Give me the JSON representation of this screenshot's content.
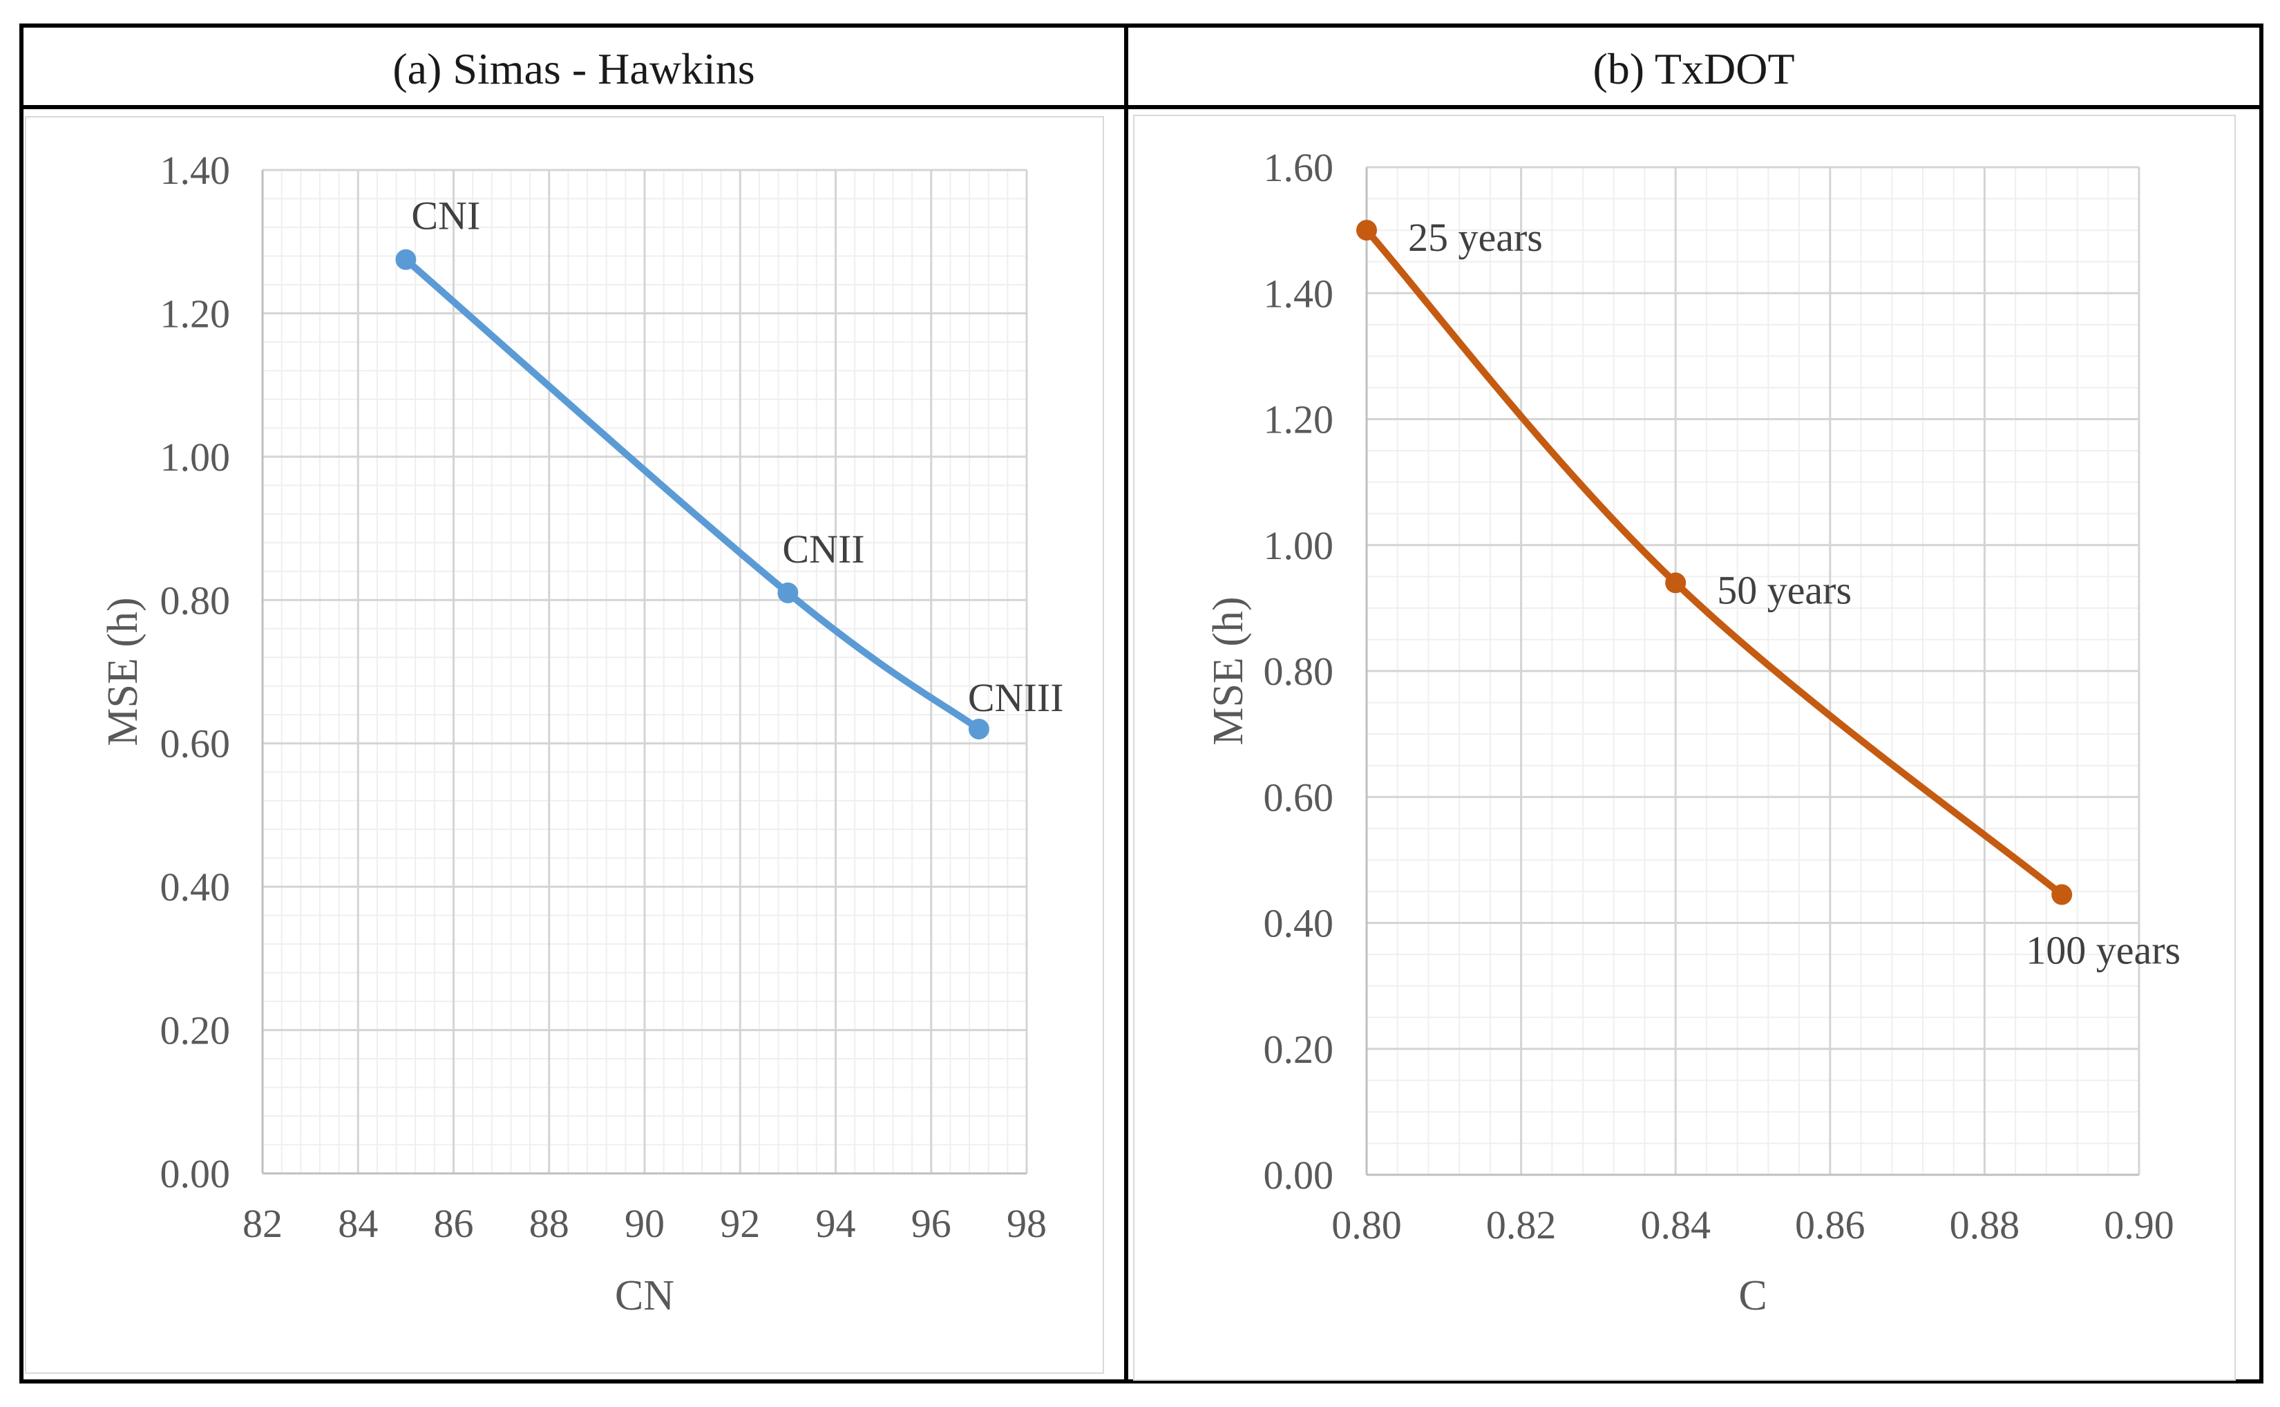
{
  "panels": {
    "a": {
      "title": "(a) Simas - Hawkins"
    },
    "b": {
      "title": "(b) TxDOT"
    }
  },
  "chart_data": [
    {
      "id": "a",
      "type": "line",
      "title": "(a) Simas - Hawkins",
      "xlabel": "CN",
      "ylabel": "MSE (h)",
      "xlim": [
        82,
        98
      ],
      "ylim": [
        0,
        1.4
      ],
      "x_ticks": [
        "82",
        "84",
        "86",
        "88",
        "90",
        "92",
        "94",
        "96",
        "98"
      ],
      "y_ticks": [
        "0.00",
        "0.20",
        "0.40",
        "0.60",
        "0.80",
        "1.00",
        "1.20",
        "1.40"
      ],
      "grid": true,
      "series": [
        {
          "name": "Simas - Hawkins",
          "color": "#5b9bd5",
          "x": [
            85,
            93,
            97
          ],
          "y": [
            1.275,
            0.81,
            0.62
          ],
          "point_labels": [
            "CNI",
            "CNII",
            "CNIII"
          ]
        }
      ]
    },
    {
      "id": "b",
      "type": "line",
      "title": "(b) TxDOT",
      "xlabel": "C",
      "ylabel": "MSE (h)",
      "xlim": [
        0.8,
        0.9
      ],
      "ylim": [
        0,
        1.6
      ],
      "x_ticks": [
        "0.80",
        "0.82",
        "0.84",
        "0.86",
        "0.88",
        "0.90"
      ],
      "y_ticks": [
        "0.00",
        "0.20",
        "0.40",
        "0.60",
        "0.80",
        "1.00",
        "1.20",
        "1.40",
        "1.60"
      ],
      "grid": true,
      "series": [
        {
          "name": "TxDOT",
          "color": "#c55a11",
          "x": [
            0.8,
            0.84,
            0.89
          ],
          "y": [
            1.5,
            0.94,
            0.445
          ],
          "point_labels": [
            "25 years",
            "50 years",
            "100 years"
          ]
        }
      ]
    }
  ]
}
